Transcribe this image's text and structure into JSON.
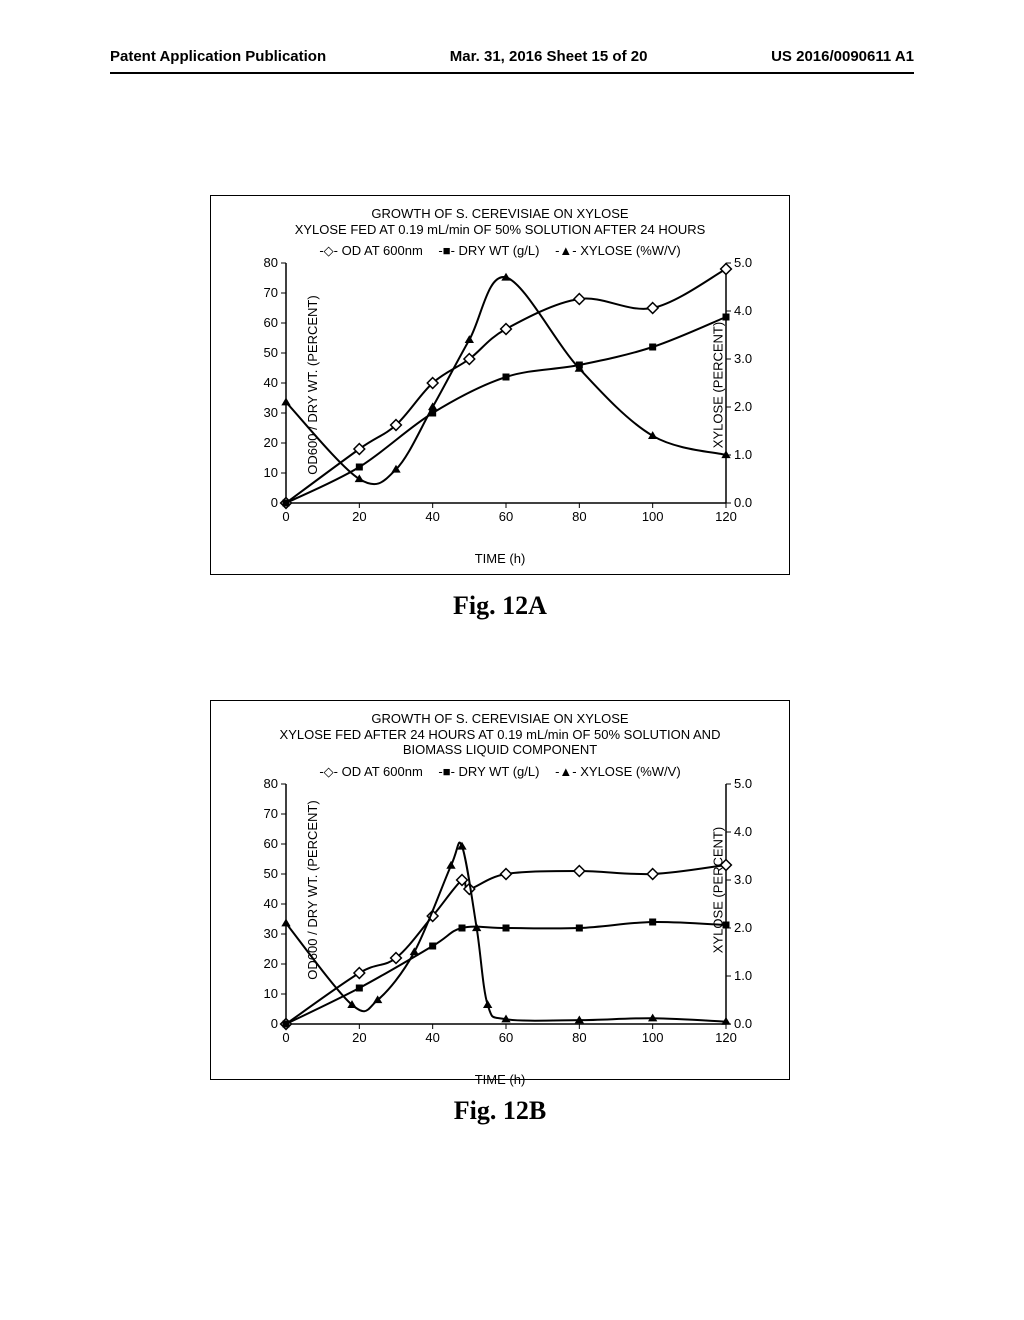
{
  "header": {
    "left": "Patent Application Publication",
    "center": "Mar. 31, 2016  Sheet 15 of 20",
    "right": "US 2016/0090611 A1"
  },
  "chartA": {
    "title_line1": "GROWTH OF S. CEREVISIAE ON XYLOSE",
    "title_line2": "XYLOSE FED AT 0.19 mL/min OF 50% SOLUTION AFTER 24 HOURS",
    "legend": {
      "s1": "OD AT 600nm",
      "s2": "DRY WT (g/L)",
      "s3": "XYLOSE (%W/V)"
    },
    "ylabel_left": "OD600 / DRY WT. (PERCENT)",
    "ylabel_right": "XYLOSE (PERCENT)",
    "xlabel": "TIME (h)",
    "caption": "Fig. 12A",
    "xlim": [
      0,
      120
    ],
    "xtick_step": 20,
    "y1_lim": [
      0,
      80
    ],
    "y1_tick_step": 10,
    "y2_lim": [
      0.0,
      5.0
    ],
    "y2_tick_step": 1.0,
    "series_od": {
      "x": [
        0,
        20,
        30,
        40,
        50,
        60,
        80,
        100,
        120
      ],
      "y": [
        0,
        18,
        26,
        40,
        48,
        58,
        68,
        65,
        78
      ]
    },
    "series_dry": {
      "x": [
        0,
        20,
        40,
        60,
        80,
        100,
        120
      ],
      "y": [
        0,
        12,
        30,
        42,
        46,
        52,
        62
      ]
    },
    "series_xyl": {
      "x": [
        0,
        20,
        30,
        40,
        50,
        60,
        80,
        100,
        120
      ],
      "y": [
        2.1,
        0.5,
        0.7,
        2.0,
        3.4,
        4.7,
        2.8,
        1.4,
        1.0
      ]
    },
    "line_color": "#000000",
    "line_width": 2,
    "marker_size": 7
  },
  "chartB": {
    "title_line1": "GROWTH OF S. CEREVISIAE ON XYLOSE",
    "title_line2": "XYLOSE FED AFTER 24 HOURS AT 0.19 mL/min OF 50% SOLUTION AND",
    "title_line3": "BIOMASS LIQUID COMPONENT",
    "legend": {
      "s1": "OD AT 600nm",
      "s2": "DRY WT (g/L)",
      "s3": "XYLOSE (%W/V)"
    },
    "ylabel_left": "OD600 / DRY WT. (PERCENT)",
    "ylabel_right": "XYLOSE (PERCENT)",
    "xlabel": "TIME (h)",
    "caption": "Fig. 12B",
    "xlim": [
      0,
      120
    ],
    "xtick_step": 20,
    "y1_lim": [
      0,
      80
    ],
    "y1_tick_step": 10,
    "y2_lim": [
      0.0,
      5.0
    ],
    "y2_tick_step": 1.0,
    "series_od": {
      "x": [
        0,
        20,
        30,
        40,
        48,
        50,
        60,
        80,
        100,
        120
      ],
      "y": [
        0,
        17,
        22,
        36,
        48,
        45,
        50,
        51,
        50,
        53
      ]
    },
    "series_dry": {
      "x": [
        0,
        20,
        40,
        48,
        60,
        80,
        100,
        120
      ],
      "y": [
        0,
        12,
        26,
        32,
        32,
        32,
        34,
        33
      ]
    },
    "series_xyl": {
      "x": [
        0,
        18,
        25,
        35,
        45,
        48,
        52,
        55,
        60,
        80,
        100,
        120
      ],
      "y": [
        2.1,
        0.4,
        0.5,
        1.5,
        3.3,
        3.7,
        2.0,
        0.4,
        0.1,
        0.08,
        0.12,
        0.05
      ]
    },
    "line_color": "#000000",
    "line_width": 2,
    "marker_size": 7
  }
}
